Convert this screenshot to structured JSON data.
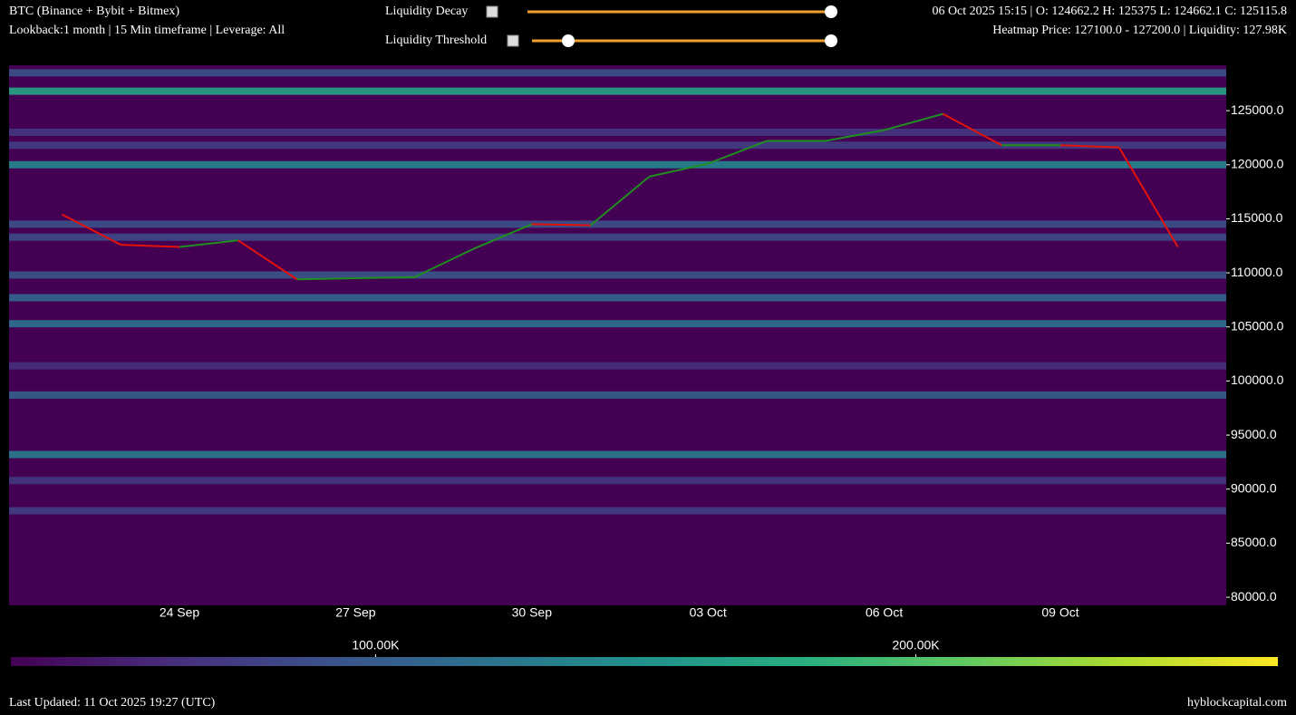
{
  "header": {
    "title": "BTC (Binance + Bybit + Bitmex)",
    "subtitle": "Lookback:1 month | 15 Min timeframe | Leverage: All",
    "controls": [
      "Liquidity Decay",
      "Liquidity Threshold"
    ],
    "ohlc": "06 Oct 2025 15:15 | O: 124662.2 H: 125375 L: 124662.1 C: 125115.8",
    "hover": "Heatmap Price: 127100.0 - 127200.0 | Liquidity: 127.98K"
  },
  "chart_data": {
    "type": "heatmap",
    "x": [
      "22 Sep",
      "23 Sep",
      "24 Sep",
      "25 Sep",
      "26 Sep",
      "27 Sep",
      "28 Sep",
      "29 Sep",
      "30 Sep",
      "01 Oct",
      "02 Oct",
      "03 Oct",
      "04 Oct",
      "05 Oct",
      "06 Oct",
      "07 Oct",
      "08 Oct",
      "09 Oct",
      "10 Oct",
      "11 Oct"
    ],
    "values": [
      115400,
      112600,
      112400,
      113000,
      109400,
      109500,
      109600,
      112200,
      114500,
      114400,
      118900,
      120100,
      122200,
      122200,
      123200,
      124700,
      121800,
      121800,
      121600,
      112400
    ],
    "up_color": "#1f8f1f",
    "down_color": "#e3120b",
    "ylim": [
      79250,
      129200
    ],
    "yticks": [
      {
        "value": 80000,
        "label": "80000.0"
      },
      {
        "value": 85000,
        "label": "85000.0"
      },
      {
        "value": 90000,
        "label": "90000.0"
      },
      {
        "value": 95000,
        "label": "95000.0"
      },
      {
        "value": 100000,
        "label": "100000.0"
      },
      {
        "value": 105000,
        "label": "105000.0"
      },
      {
        "value": 110000,
        "label": "110000.0"
      },
      {
        "value": 115000,
        "label": "115000.0"
      },
      {
        "value": 120000,
        "label": "120000.0"
      },
      {
        "value": 125000,
        "label": "125000.0"
      }
    ],
    "xticks": [
      "24 Sep",
      "27 Sep",
      "30 Sep",
      "03 Oct",
      "06 Oct",
      "09 Oct"
    ],
    "levels": {
      "prices": [
        128500,
        126800,
        123000,
        121800,
        120000,
        114500,
        113300,
        109800,
        107700,
        105300,
        101400,
        98700,
        93200,
        90800,
        88000
      ],
      "liquidity": [
        90000,
        170000,
        70000,
        75000,
        140000,
        90000,
        85000,
        95000,
        110000,
        120000,
        65000,
        105000,
        130000,
        70000,
        75000
      ]
    },
    "colorbar": {
      "range": [
        32500,
        267000
      ],
      "colors": [
        "#440154",
        "#472d7b",
        "#3b528b",
        "#2c728e",
        "#21918c",
        "#28ae80",
        "#5ec962",
        "#addc30",
        "#fde725"
      ],
      "ticks": [
        {
          "value": 100000,
          "label": "100.00K"
        },
        {
          "value": 200000,
          "label": "200.00K"
        }
      ]
    }
  },
  "footer": {
    "updated": "Last Updated: 11 Oct 2025 19:27 (UTC)",
    "brand": "hyblockcapital.com"
  }
}
